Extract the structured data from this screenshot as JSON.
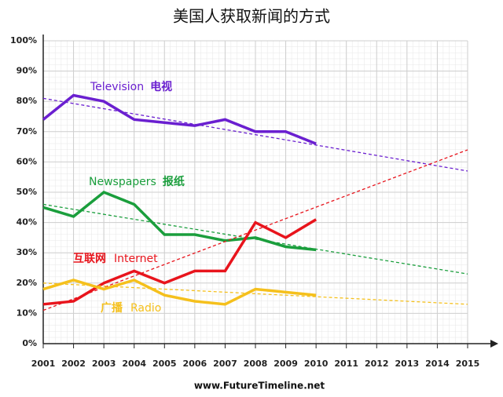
{
  "chart_data": {
    "type": "line",
    "title": "美国人获取新闻的方式",
    "source": "www.FutureTimeline.net",
    "x": [
      2001,
      2002,
      2003,
      2004,
      2005,
      2006,
      2007,
      2008,
      2009,
      2010
    ],
    "xlim": [
      2001,
      2015
    ],
    "xticks": [
      2001,
      2002,
      2003,
      2004,
      2005,
      2006,
      2007,
      2008,
      2009,
      2010,
      2011,
      2012,
      2013,
      2014,
      2015
    ],
    "ylim": [
      0,
      100
    ],
    "yticks": [
      {
        "value": 0,
        "label": "0%"
      },
      {
        "value": 10,
        "label": "10%"
      },
      {
        "value": 20,
        "label": "20%"
      },
      {
        "value": 30,
        "label": "30%"
      },
      {
        "value": 40,
        "label": "40%"
      },
      {
        "value": 50,
        "label": "50%"
      },
      {
        "value": 60,
        "label": "60%"
      },
      {
        "value": 70,
        "label": "70%"
      },
      {
        "value": 80,
        "label": "80%"
      },
      {
        "value": 90,
        "label": "90%"
      },
      {
        "value": 100,
        "label": "100%"
      }
    ],
    "grid": true,
    "series": [
      {
        "name": "Television",
        "name_cn": "电视",
        "color": "#6a1fd0",
        "values": [
          74,
          82,
          80,
          74,
          73,
          72,
          74,
          70,
          70,
          66
        ],
        "trend_x": [
          2001,
          2015
        ],
        "trend_values": [
          81,
          57
        ]
      },
      {
        "name": "Newspapers",
        "name_cn": "报纸",
        "color": "#1a9e3c",
        "values": [
          45,
          42,
          50,
          46,
          36,
          36,
          34,
          35,
          32,
          31
        ],
        "trend_x": [
          2001,
          2015
        ],
        "trend_values": [
          46,
          23
        ]
      },
      {
        "name": "Internet",
        "name_cn": "互联网",
        "color": "#e8141c",
        "values": [
          13,
          14,
          20,
          24,
          20,
          24,
          24,
          40,
          35,
          41
        ],
        "trend_x": [
          2001,
          2015
        ],
        "trend_values": [
          11,
          64
        ]
      },
      {
        "name": "Radio",
        "name_cn": "广播",
        "color": "#f5c01c",
        "values": [
          18,
          21,
          18,
          21,
          16,
          14,
          13,
          18,
          17,
          16
        ],
        "trend_x": [
          2001,
          2015
        ],
        "trend_values": [
          20,
          13
        ]
      }
    ]
  }
}
